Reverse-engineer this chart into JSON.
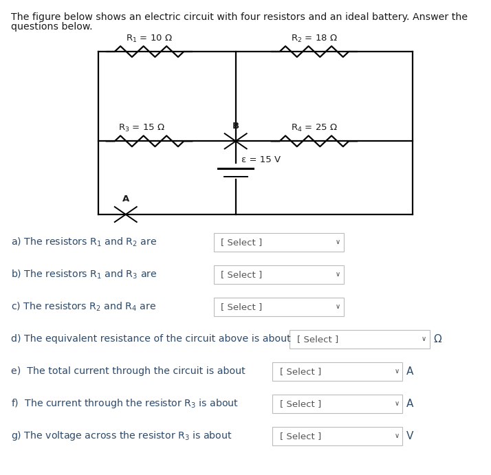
{
  "title_line1": "The figure below shows an electric circuit with four resistors and an ideal battery. Answer the",
  "title_line2": "questions below.",
  "bg_color": "#ffffff",
  "text_color": "#2d4a6b",
  "circuit": {
    "R1_label": "R$_1$ = 10 Ω",
    "R2_label": "R$_2$ = 18 Ω",
    "R3_label": "R$_3$ = 15 Ω",
    "R4_label": "R$_4$ = 25 Ω",
    "battery_label": "ε = 15 V",
    "node_A": "A",
    "node_B": "B"
  },
  "questions": [
    "a) The resistors R$_1$ and R$_2$ are",
    "b) The resistors R$_1$ and R$_3$ are",
    "c) The resistors R$_2$ and R$_4$ are",
    "d) The equivalent resistance of the circuit above is about",
    "e)  The total current through the circuit is about",
    "f)  The current through the resistor R$_3$ is about",
    "g) The voltage across the resistor R$_3$ is about"
  ],
  "units": [
    "",
    "",
    "",
    "Ω",
    "A",
    "A",
    "V"
  ],
  "select_label": "[ Select ]"
}
